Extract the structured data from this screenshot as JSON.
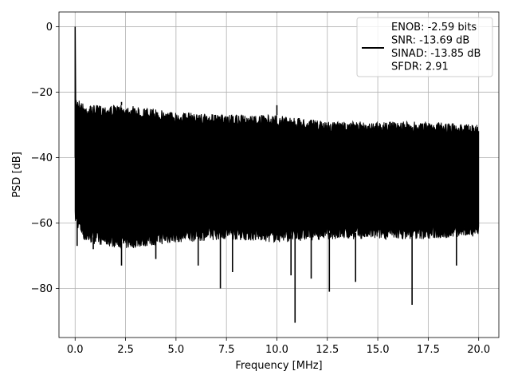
{
  "chart_data": {
    "type": "line",
    "title": "",
    "xlabel": "Frequency [MHz]",
    "ylabel": "PSD [dB]",
    "xlim": [
      -0.8,
      21.0
    ],
    "ylim": [
      -95,
      4.5
    ],
    "xticks": [
      0.0,
      2.5,
      5.0,
      7.5,
      10.0,
      12.5,
      15.0,
      17.5,
      20.0
    ],
    "xtick_labels": [
      "0.0",
      "2.5",
      "5.0",
      "7.5",
      "10.0",
      "12.5",
      "15.0",
      "17.5",
      "20.0"
    ],
    "yticks": [
      0,
      -20,
      -40,
      -60,
      -80
    ],
    "ytick_labels": [
      "0",
      "−20",
      "−40",
      "−60",
      "−80"
    ],
    "grid": true,
    "legend_position": "top-right",
    "series_color": "#000000",
    "series": [
      {
        "legend_lines": [
          "ENOB: -2.59 bits",
          "SNR: -13.69 dB",
          "SINAD: -13.85 dB",
          "SFDR: 2.91"
        ],
        "description": "dense noise floor spectrum from 0 to 20 MHz",
        "peak": {
          "x": 0.0,
          "y": 0.0
        },
        "envelope": [
          {
            "x": 0.0,
            "top": -21,
            "bottom": -58
          },
          {
            "x": 0.5,
            "top": -24,
            "bottom": -64
          },
          {
            "x": 2.5,
            "top": -24,
            "bottom": -66
          },
          {
            "x": 5.0,
            "top": -26,
            "bottom": -64
          },
          {
            "x": 7.5,
            "top": -27,
            "bottom": -63
          },
          {
            "x": 10.0,
            "top": -27,
            "bottom": -64
          },
          {
            "x": 12.5,
            "top": -29,
            "bottom": -63
          },
          {
            "x": 15.0,
            "top": -29,
            "bottom": -63
          },
          {
            "x": 17.5,
            "top": -29,
            "bottom": -63
          },
          {
            "x": 20.0,
            "top": -30,
            "bottom": -62
          }
        ],
        "spikes_down": [
          {
            "x": 0.1,
            "y": -67
          },
          {
            "x": 0.9,
            "y": -68
          },
          {
            "x": 2.3,
            "y": -73
          },
          {
            "x": 4.0,
            "y": -71
          },
          {
            "x": 6.1,
            "y": -73
          },
          {
            "x": 7.2,
            "y": -80
          },
          {
            "x": 7.8,
            "y": -75
          },
          {
            "x": 10.7,
            "y": -76
          },
          {
            "x": 10.9,
            "y": -90.5
          },
          {
            "x": 11.7,
            "y": -77
          },
          {
            "x": 12.6,
            "y": -81
          },
          {
            "x": 13.9,
            "y": -78
          },
          {
            "x": 16.7,
            "y": -85
          },
          {
            "x": 18.9,
            "y": -73
          }
        ],
        "spikes_up": [
          {
            "x": 2.3,
            "y": -23
          },
          {
            "x": 10.0,
            "y": -24
          }
        ]
      }
    ]
  }
}
